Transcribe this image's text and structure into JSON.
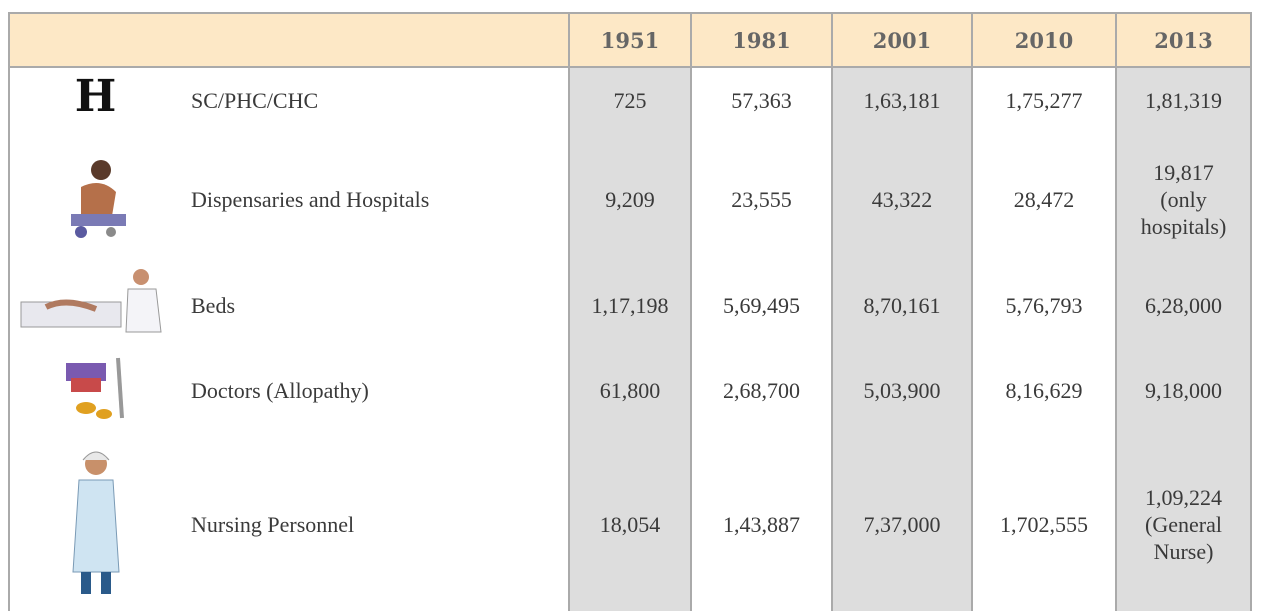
{
  "icon_text": "H",
  "table": {
    "header": [
      "1951",
      "1981",
      "2001",
      "2010",
      "2013"
    ],
    "rows": [
      {
        "label": "SC/PHC/CHC",
        "cells": [
          "725",
          "57,363",
          "1,63,181",
          "1,75,277",
          "1,81,319"
        ]
      },
      {
        "label": "Dispensaries and Hospitals",
        "cells": [
          "9,209",
          "23,555",
          "43,322",
          "28,472",
          "19,817\n(only\nhospitals)"
        ]
      },
      {
        "label": "Beds",
        "cells": [
          "1,17,198",
          "5,69,495",
          "8,70,161",
          "5,76,793",
          "6,28,000"
        ]
      },
      {
        "label": "Doctors (Allopathy)",
        "cells": [
          "61,800",
          "2,68,700",
          "5,03,900",
          "8,16,629",
          "9,18,000"
        ]
      },
      {
        "label": "Nursing Personnel",
        "cells": [
          "18,054",
          "1,43,887",
          "7,37,000",
          "1,702,555",
          "1,09,224\n(General\nNurse)"
        ]
      }
    ]
  }
}
